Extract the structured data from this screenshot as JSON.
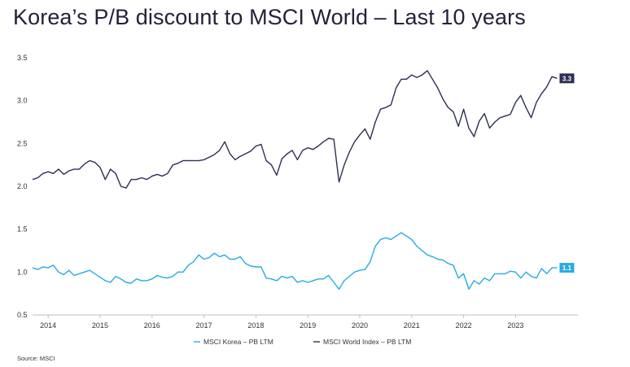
{
  "chart_data": {
    "type": "line",
    "title": "Korea’s P/B discount to MSCI World – Last 10 years",
    "xlabel": "",
    "ylabel": "",
    "ylim": [
      0.5,
      3.5
    ],
    "xlim": [
      2013.7,
      2024.2
    ],
    "y_ticks": [
      "3.5",
      "3.0",
      "2.5",
      "2.0",
      "1.5",
      "1.0",
      "0.5"
    ],
    "y_tick_values": [
      3.5,
      3.0,
      2.5,
      2.0,
      1.5,
      1.0,
      0.5
    ],
    "x_ticks": [
      "2014",
      "2015",
      "2016",
      "2017",
      "2018",
      "2019",
      "2020",
      "2021",
      "2022",
      "2023"
    ],
    "x_tick_values": [
      2014,
      2015,
      2016,
      2017,
      2018,
      2019,
      2020,
      2021,
      2022,
      2023
    ],
    "grid": false,
    "legend_position": "bottom",
    "source": "Source: MSCI",
    "series": [
      {
        "name": "MSCI World Index – PB LTM",
        "color": "#2c2f55",
        "end_label": "3.3",
        "x": [
          2013.7,
          2013.8,
          2013.9,
          2014.0,
          2014.1,
          2014.2,
          2014.3,
          2014.4,
          2014.5,
          2014.6,
          2014.7,
          2014.8,
          2014.9,
          2015.0,
          2015.1,
          2015.2,
          2015.3,
          2015.4,
          2015.5,
          2015.6,
          2015.7,
          2015.8,
          2015.9,
          2016.0,
          2016.1,
          2016.2,
          2016.3,
          2016.4,
          2016.5,
          2016.6,
          2016.7,
          2016.8,
          2016.9,
          2017.0,
          2017.1,
          2017.2,
          2017.3,
          2017.4,
          2017.5,
          2017.6,
          2017.7,
          2017.8,
          2017.9,
          2018.0,
          2018.1,
          2018.2,
          2018.3,
          2018.4,
          2018.5,
          2018.6,
          2018.7,
          2018.8,
          2018.9,
          2019.0,
          2019.1,
          2019.2,
          2019.3,
          2019.4,
          2019.5,
          2019.6,
          2019.7,
          2019.8,
          2019.9,
          2020.0,
          2020.1,
          2020.2,
          2020.3,
          2020.4,
          2020.5,
          2020.6,
          2020.7,
          2020.8,
          2020.9,
          2021.0,
          2021.1,
          2021.2,
          2021.3,
          2021.4,
          2021.5,
          2021.6,
          2021.7,
          2021.8,
          2021.9,
          2022.0,
          2022.1,
          2022.2,
          2022.3,
          2022.4,
          2022.5,
          2022.6,
          2022.7,
          2022.8,
          2022.9,
          2023.0,
          2023.1,
          2023.2,
          2023.3,
          2023.4,
          2023.5,
          2023.6,
          2023.7,
          2023.8
        ],
        "values": [
          2.08,
          2.1,
          2.15,
          2.17,
          2.15,
          2.2,
          2.14,
          2.18,
          2.2,
          2.2,
          2.26,
          2.3,
          2.28,
          2.22,
          2.08,
          2.2,
          2.15,
          2.0,
          1.98,
          2.08,
          2.08,
          2.1,
          2.08,
          2.12,
          2.14,
          2.12,
          2.15,
          2.25,
          2.27,
          2.3,
          2.3,
          2.3,
          2.3,
          2.31,
          2.34,
          2.37,
          2.42,
          2.52,
          2.38,
          2.31,
          2.35,
          2.38,
          2.41,
          2.47,
          2.49,
          2.3,
          2.25,
          2.13,
          2.32,
          2.38,
          2.42,
          2.31,
          2.42,
          2.45,
          2.43,
          2.47,
          2.52,
          2.56,
          2.55,
          2.05,
          2.25,
          2.4,
          2.52,
          2.6,
          2.67,
          2.55,
          2.75,
          2.9,
          2.92,
          2.95,
          3.15,
          3.25,
          3.25,
          3.3,
          3.27,
          3.3,
          3.35,
          3.25,
          3.15,
          3.02,
          2.92,
          2.87,
          2.7,
          2.9,
          2.68,
          2.58,
          2.76,
          2.85,
          2.68,
          2.75,
          2.8,
          2.82,
          2.84,
          2.98,
          3.06,
          2.92,
          2.8,
          2.98,
          3.08,
          3.16,
          3.28,
          3.26
        ]
      },
      {
        "name": "MSCI Korea – PB LTM",
        "color": "#29abe2",
        "end_label": "1.1",
        "x": [
          2013.7,
          2013.8,
          2013.9,
          2014.0,
          2014.1,
          2014.2,
          2014.3,
          2014.4,
          2014.5,
          2014.6,
          2014.7,
          2014.8,
          2014.9,
          2015.0,
          2015.1,
          2015.2,
          2015.3,
          2015.4,
          2015.5,
          2015.6,
          2015.7,
          2015.8,
          2015.9,
          2016.0,
          2016.1,
          2016.2,
          2016.3,
          2016.4,
          2016.5,
          2016.6,
          2016.7,
          2016.8,
          2016.9,
          2017.0,
          2017.1,
          2017.2,
          2017.3,
          2017.4,
          2017.5,
          2017.6,
          2017.7,
          2017.8,
          2017.9,
          2018.0,
          2018.1,
          2018.2,
          2018.3,
          2018.4,
          2018.5,
          2018.6,
          2018.7,
          2018.8,
          2018.9,
          2019.0,
          2019.1,
          2019.2,
          2019.3,
          2019.4,
          2019.5,
          2019.6,
          2019.7,
          2019.8,
          2019.9,
          2020.0,
          2020.1,
          2020.2,
          2020.3,
          2020.4,
          2020.5,
          2020.6,
          2020.7,
          2020.8,
          2020.9,
          2021.0,
          2021.1,
          2021.2,
          2021.3,
          2021.4,
          2021.5,
          2021.6,
          2021.7,
          2021.8,
          2021.9,
          2022.0,
          2022.1,
          2022.2,
          2022.3,
          2022.4,
          2022.5,
          2022.6,
          2022.7,
          2022.8,
          2022.9,
          2023.0,
          2023.1,
          2023.2,
          2023.3,
          2023.4,
          2023.5,
          2023.6,
          2023.7,
          2023.8
        ],
        "values": [
          1.05,
          1.03,
          1.06,
          1.05,
          1.08,
          1.0,
          0.97,
          1.02,
          0.96,
          0.98,
          1.0,
          1.02,
          0.98,
          0.94,
          0.9,
          0.88,
          0.95,
          0.92,
          0.88,
          0.87,
          0.92,
          0.9,
          0.9,
          0.92,
          0.96,
          0.94,
          0.93,
          0.95,
          1.0,
          1.0,
          1.08,
          1.12,
          1.2,
          1.15,
          1.17,
          1.22,
          1.18,
          1.2,
          1.15,
          1.15,
          1.18,
          1.1,
          1.07,
          1.06,
          1.06,
          0.93,
          0.92,
          0.9,
          0.95,
          0.93,
          0.95,
          0.88,
          0.9,
          0.88,
          0.9,
          0.92,
          0.92,
          0.96,
          0.88,
          0.8,
          0.9,
          0.95,
          1.0,
          1.02,
          1.03,
          1.12,
          1.3,
          1.38,
          1.4,
          1.38,
          1.42,
          1.46,
          1.42,
          1.38,
          1.3,
          1.25,
          1.2,
          1.18,
          1.15,
          1.14,
          1.1,
          1.08,
          0.93,
          0.98,
          0.8,
          0.9,
          0.86,
          0.93,
          0.9,
          0.98,
          0.98,
          0.98,
          1.01,
          1.0,
          0.93,
          1.0,
          0.95,
          0.93,
          1.04,
          0.98,
          1.05,
          1.05
        ]
      }
    ]
  }
}
